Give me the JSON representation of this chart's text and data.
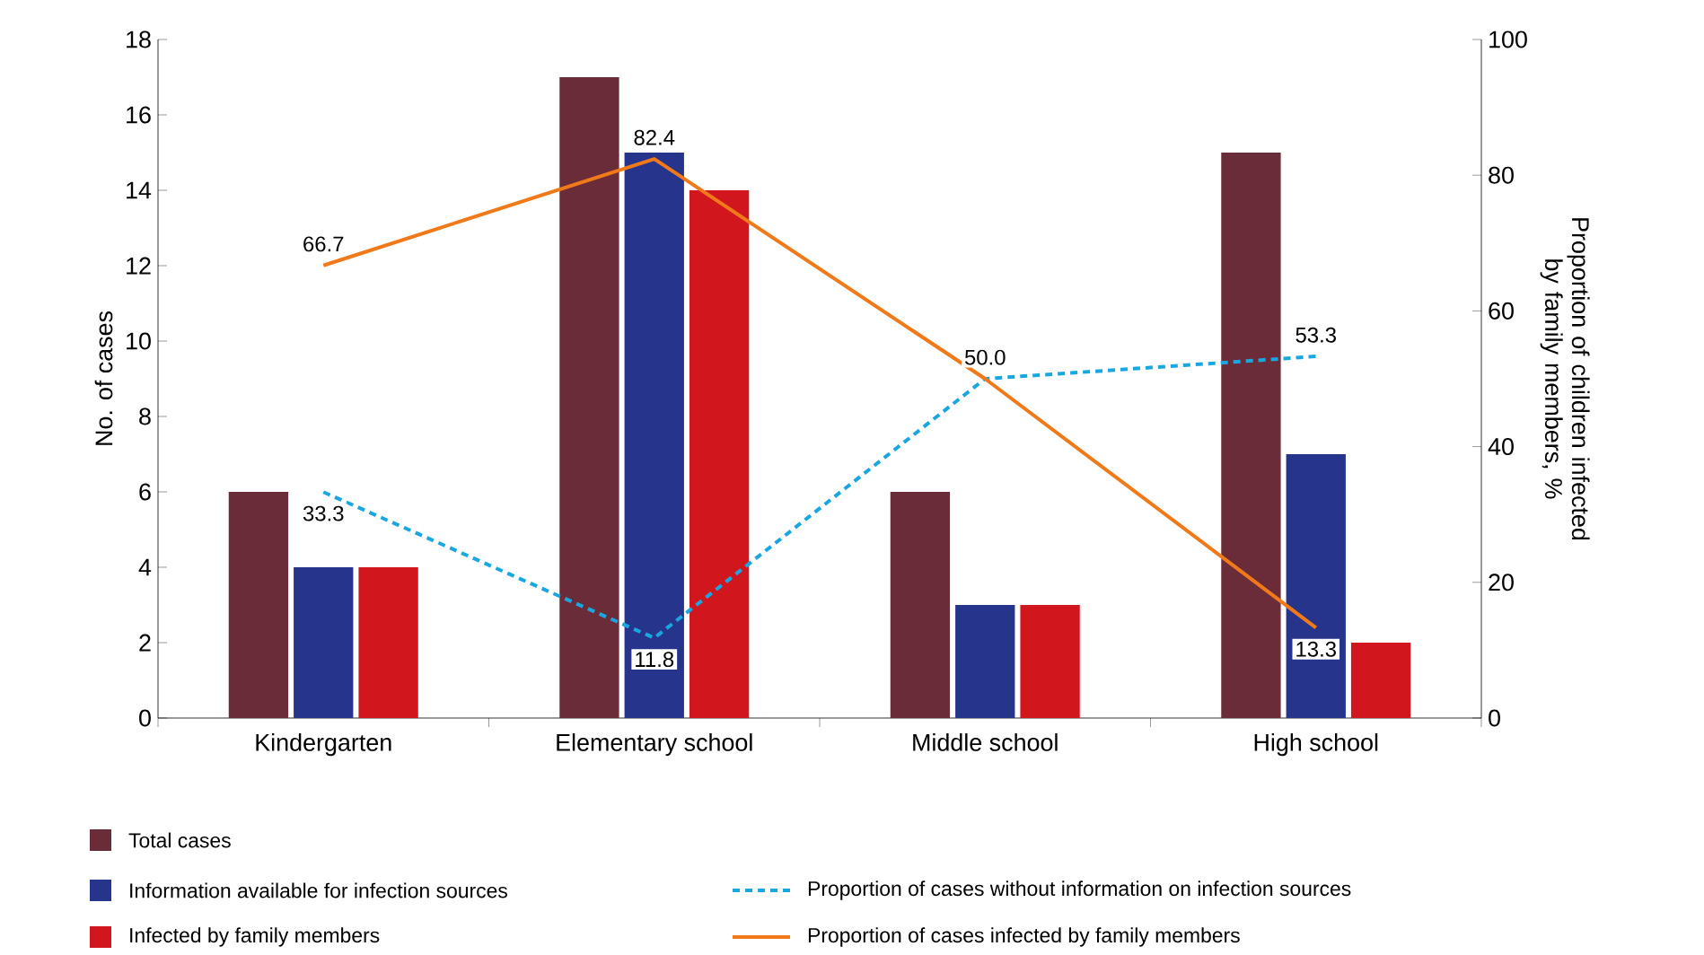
{
  "chart_data": {
    "type": "bar",
    "ylabel": "No. of cases",
    "y2label": "Proportion of children infected by family members, %",
    "categories": [
      "Kindergarten",
      "Elementary school",
      "Middle school",
      "High school"
    ],
    "series": [
      {
        "name": "Total cases",
        "color": "#6b2c3a",
        "values": [
          6,
          17,
          6,
          15
        ]
      },
      {
        "name": "Information available for infection sources",
        "color": "#27348b",
        "values": [
          4,
          15,
          3,
          7
        ]
      },
      {
        "name": "Infected by family members",
        "color": "#d2161e",
        "values": [
          4,
          14,
          3,
          2
        ]
      },
      {
        "name": "Proportion of cases without information on infection sources",
        "type": "line",
        "axis": "y2",
        "line_style": "dashed",
        "color": "#1aa7e0",
        "values": [
          33.3,
          11.8,
          50.0,
          53.3
        ],
        "value_labels": [
          "33.3",
          "11.8",
          null,
          "53.3"
        ]
      },
      {
        "name": "Proportion of cases infected by family members",
        "type": "line",
        "axis": "y2",
        "line_style": "solid",
        "color": "#f07a1a",
        "values": [
          66.7,
          82.4,
          50.0,
          13.3
        ],
        "value_labels": [
          "66.7",
          "82.4",
          "50.0",
          "13.3"
        ]
      }
    ],
    "ylim": [
      0,
      18
    ],
    "yticks": [
      0,
      2,
      4,
      6,
      8,
      10,
      12,
      14,
      16,
      18
    ],
    "y2lim": [
      0,
      100
    ],
    "y2ticks": [
      0,
      20,
      40,
      60,
      80,
      100
    ],
    "legend": "bottom",
    "marker": "none",
    "grid": false
  }
}
